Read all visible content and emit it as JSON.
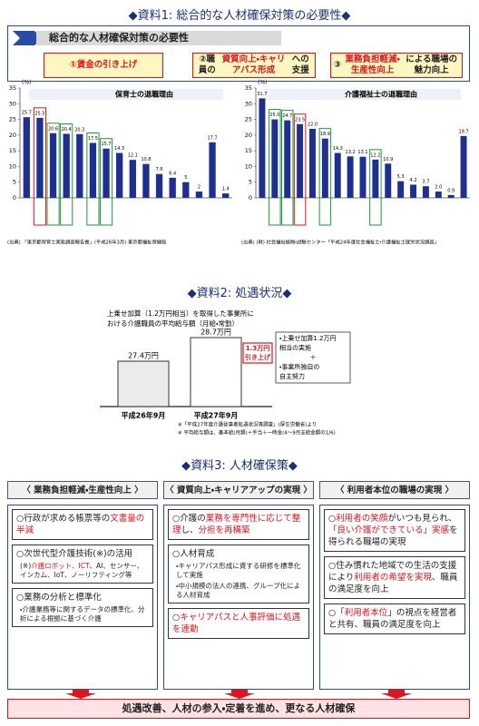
{
  "section1": {
    "title": "◆資料1: 総合的な人材確保対策の必要性◆",
    "box_title": "総合的な人材確保対策の必要性",
    "items": [
      [
        {
          "text": "①賃金の引き上げ",
          "red": true
        }
      ],
      [
        {
          "text": "②職員の"
        },
        {
          "text": "資質向上・キャリアパス形成",
          "red": true
        },
        {
          "text": "への支援"
        }
      ],
      [
        {
          "text": "③"
        },
        {
          "text": "業務負担軽減・生産性向上",
          "red": true
        },
        {
          "text": "による職場の魅力向上"
        }
      ]
    ]
  },
  "chart_data": [
    {
      "type": "bar",
      "title": "保育士の退職理由",
      "y_unit": "(%)",
      "categories": [
        null,
        null,
        null,
        null,
        null,
        null,
        null,
        null,
        null,
        null,
        null,
        null,
        null,
        null,
        null,
        null
      ],
      "values": [
        25.7,
        25.5,
        20.6,
        20.4,
        20.3,
        17.5,
        15.7,
        14.3,
        12.1,
        10.8,
        7.6,
        6.4,
        5,
        2,
        17.7,
        1.4
      ],
      "outline": [
        null,
        "#e0141e",
        "#1a9a3a",
        "#1a9a3a",
        null,
        "#1a9a3a",
        "#1a9a3a",
        null,
        null,
        null,
        null,
        null,
        null,
        null,
        null,
        null
      ],
      "color": "#1f2f8f",
      "ylim": [
        0,
        35
      ],
      "yticks": [
        0,
        5,
        10,
        15,
        20,
        25,
        30,
        35
      ],
      "source": "(出典) 「東京都保育士実態調査報告書」(平成26年3月) 東京都福祉保健局"
    },
    {
      "type": "bar",
      "title": "介護福祉士の退職理由",
      "y_unit": "(%)",
      "categories": [
        null,
        null,
        null,
        null,
        null,
        null,
        null,
        null,
        null,
        null,
        null,
        null,
        null,
        null,
        null,
        null,
        null
      ],
      "values": [
        31.7,
        25.0,
        24.7,
        23.5,
        22.0,
        18.9,
        14.3,
        13.2,
        13.1,
        12.2,
        10.9,
        5.3,
        4.2,
        3.7,
        2.0,
        0.9,
        19.7
      ],
      "value_labels": [
        "31.7",
        "25.0",
        "24.7",
        "23.5",
        "22.0",
        "18.9",
        "14.3",
        "13.2",
        "13.1",
        "12.2",
        "10.9",
        "5.3",
        "4.2",
        "3.7",
        "2.0",
        "0.9",
        "19.7"
      ],
      "outline": [
        null,
        "#1a9a3a",
        "#1a9a3a",
        "#e0141e",
        null,
        "#1a9a3a",
        null,
        null,
        null,
        "#1a9a3a",
        null,
        null,
        null,
        null,
        null,
        null,
        null
      ],
      "color": "#1f2f8f",
      "ylim": [
        0,
        35
      ],
      "yticks": [
        0,
        5,
        10,
        15,
        20,
        25,
        30,
        35
      ],
      "source": "(出典) (財) 社会福祉振興・試験センター「平成24年度社会福祉士・介護福祉士就労状況調査」"
    },
    {
      "type": "step",
      "title": [
        "上乗せ加算（1.2万円相当）を取得した事業所に",
        "おける介護職員の平均給与額（月給・常勤）"
      ],
      "categories": [
        "平成26年9月",
        "平成27年9月"
      ],
      "values": [
        27.4,
        28.7
      ],
      "value_labels": [
        "27.4万円",
        "28.7万円"
      ],
      "colors": [
        "#ebebeb",
        "#ffffff"
      ],
      "ylim": [
        24.9,
        29
      ],
      "annotation": [
        "1.3万円",
        "引き上げ"
      ],
      "note_box": [
        "・上乗せ加算1.2万円",
        "相当の実施",
        "＋",
        "・事業所独自の",
        "自主努力"
      ],
      "notes": [
        "※「平成27年度介護従事者処遇状況等調査」(厚生労働省)より",
        "※ 平均給与額は、基本給(月額)＋手当＋一時金(4〜9月支給金額の1/6)"
      ]
    }
  ],
  "section2": {
    "title": "◆資料2: 処遇状況◆"
  },
  "section3": {
    "title": "◆資料3: 人材確保策◆",
    "columns": [
      {
        "header": "〈 業務負担軽減・生産性向上 〉",
        "items": [
          {
            "parts": [
              {
                "text": "○行政が求める帳票等の"
              },
              {
                "text": "文書量の半減",
                "red": true
              }
            ],
            "subs": []
          },
          {
            "parts": [
              {
                "text": "○次世代型介護技術(※)の活用"
              }
            ],
            "subs": [
              [
                {
                  "text": "(※)"
                },
                {
                  "text": "介護ロボット、ICT",
                  "red": true
                },
                {
                  "text": "、AI、センサー、インカム、IoT、ノーリフティング等"
                }
              ]
            ]
          },
          {
            "parts": [
              {
                "text": "○業務の分析と標準化"
              }
            ],
            "subs": [
              [
                {
                  "text": "・介護業務等に関するデータの標準化、分析による根拠に基づく介護"
                }
              ]
            ]
          }
        ]
      },
      {
        "header": "〈 資質向上・キャリアアップの実現 〉",
        "items": [
          {
            "parts": [
              {
                "text": "○介護の"
              },
              {
                "text": "業務を専門性に応じて整理",
                "red": true
              },
              {
                "text": "し、"
              },
              {
                "text": "分担を再構築",
                "red": true
              }
            ],
            "subs": []
          },
          {
            "parts": [
              {
                "text": "○人材育成"
              }
            ],
            "subs": [
              [
                {
                  "text": "・キャリアパス形成に資する研修を標準化して実施"
                }
              ],
              [
                {
                  "text": "・中小規模の法人の連携、グループ化による人材育成"
                }
              ]
            ]
          },
          {
            "parts": [
              {
                "text": "○"
              },
              {
                "text": "キャリアパスと人事評価に処遇を連動",
                "red": true
              }
            ],
            "subs": []
          }
        ]
      },
      {
        "header": "〈 利用者本位の職場の実現 〉",
        "items": [
          {
            "parts": [
              {
                "text": "○"
              },
              {
                "text": "利用者の笑顔",
                "red": true
              },
              {
                "text": "がいつも見られ、"
              },
              {
                "text": "「良い介護ができている」実感",
                "red": true
              },
              {
                "text": "を得られる職場の実現"
              }
            ],
            "subs": []
          },
          {
            "parts": [
              {
                "text": "○住み慣れた地域での生活の支援により"
              },
              {
                "text": "利用者の希望を実現",
                "red": true
              },
              {
                "text": "、職員の満足度を向上"
              }
            ],
            "subs": []
          },
          {
            "parts": [
              {
                "text": "○「"
              },
              {
                "text": "利用者本位",
                "red": true
              },
              {
                "text": "」の視点を経営者と共有、職員の満足度を向上"
              }
            ],
            "subs": []
          }
        ]
      }
    ],
    "footer": "処遇改善、人材の参入・定着を進め、更なる人材確保"
  }
}
